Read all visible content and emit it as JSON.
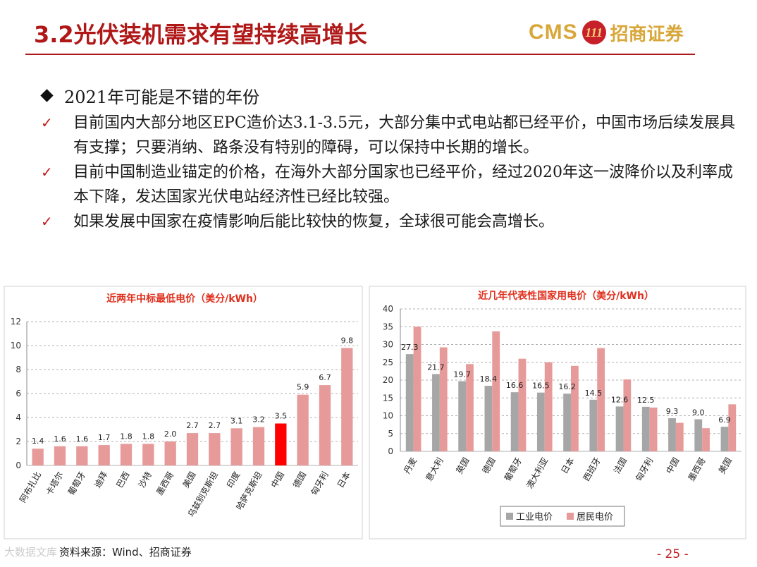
{
  "title": "3.2光伏装机需求有望持续高增长",
  "logo": {
    "latin": "CMS",
    "mark": "111",
    "chinese": "招商证券"
  },
  "section": {
    "heading": "2021年可能是不错的年份",
    "bullets": [
      "目前国内大部分地区EPC造价达3.1-3.5元，大部分集中式电站都已经平价，中国市场后续发展具有支撑；只要消纳、路条没有特别的障碍，可以保持中长期的增长。",
      "目前中国制造业锚定的价格，在海外大部分国家也已经平价，经过2020年这一波降价以及利率成本下降，发达国家光伏电站经济性已经比较强。",
      "如果发展中国家在疫情影响后能比较快的恢复，全球很可能会高增长。"
    ]
  },
  "chart_data": [
    {
      "type": "bar",
      "title": "近两年中标最低电价（美分/kWh）",
      "categories": [
        "阿布扎比",
        "卡塔尔",
        "葡萄牙",
        "迪拜",
        "巴西",
        "沙特",
        "墨西哥",
        "美国",
        "乌兹别克斯坦",
        "印度",
        "哈萨克斯坦",
        "中国",
        "德国",
        "匈牙利",
        "日本"
      ],
      "values": [
        1.4,
        1.6,
        1.6,
        1.7,
        1.8,
        1.8,
        2.0,
        2.7,
        2.7,
        3.1,
        3.2,
        3.5,
        5.9,
        6.7,
        9.8
      ],
      "labels": [
        "1.4",
        "1.6",
        "1.6",
        "1.7",
        "1.8",
        "1.8",
        "2.0",
        "2.7",
        "2.7",
        "3.1",
        "3.2",
        "3.5",
        "5.9",
        "6.7",
        "9.8"
      ],
      "highlight": "中国",
      "ylim": [
        0,
        12
      ],
      "yticks": [
        0,
        2,
        4,
        6,
        8,
        10,
        12
      ],
      "colors": {
        "bar": "#e79a9a",
        "highlight": "#ff0000"
      }
    },
    {
      "type": "bar",
      "title": "近几年代表性国家用电价（美分/kWh）",
      "categories": [
        "丹麦",
        "意大利",
        "英国",
        "德国",
        "葡萄牙",
        "澳大利亚",
        "日本",
        "西班牙",
        "法国",
        "匈牙利",
        "中国",
        "墨西哥",
        "美国"
      ],
      "series": [
        {
          "name": "工业电价",
          "values": [
            27.3,
            21.7,
            19.7,
            18.4,
            16.6,
            16.5,
            16.2,
            14.5,
            12.6,
            12.5,
            9.3,
            9.0,
            6.9
          ],
          "labels": [
            "27.3",
            "21.7",
            "19.7",
            "18.4",
            "16.6",
            "16.5",
            "16.2",
            "14.5",
            "12.6",
            "12.5",
            "9.3",
            "9.0",
            "6.9"
          ],
          "color": "#a6a6a6"
        },
        {
          "name": "居民电价",
          "values": [
            35.0,
            29.2,
            24.5,
            33.7,
            26.0,
            25.0,
            24.0,
            29.0,
            20.2,
            12.3,
            8.0,
            6.5,
            13.2
          ],
          "color": "#e79a9a"
        }
      ],
      "ylim": [
        0,
        40
      ],
      "yticks": [
        0,
        5,
        10,
        15,
        20,
        25,
        30,
        35,
        40
      ]
    }
  ],
  "footer": {
    "source": "资料来源：Wind、招商证券",
    "page": "- 25 -",
    "watermark": "大数据文库"
  }
}
